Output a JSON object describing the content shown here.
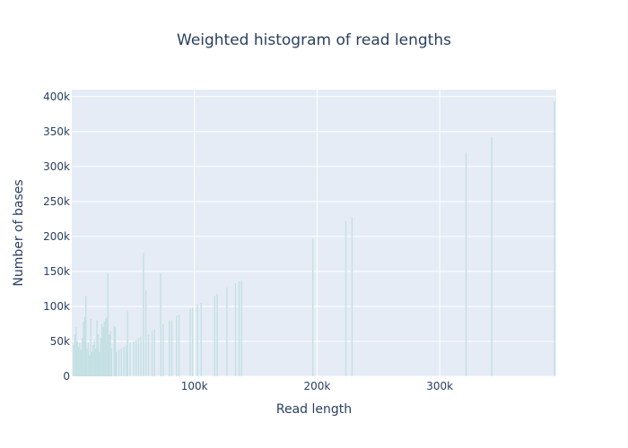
{
  "chart_data": {
    "type": "bar",
    "title": "Weighted histogram of read lengths",
    "xlabel": "Read length",
    "ylabel": "Number of bases",
    "xlim": [
      0,
      395000
    ],
    "ylim": [
      0,
      410000
    ],
    "x_ticks": [
      {
        "value": 100000,
        "label": "100k"
      },
      {
        "value": 200000,
        "label": "200k"
      },
      {
        "value": 300000,
        "label": "300k"
      }
    ],
    "y_ticks": [
      {
        "value": 0,
        "label": "0"
      },
      {
        "value": 50000,
        "label": "50k"
      },
      {
        "value": 100000,
        "label": "100k"
      },
      {
        "value": 150000,
        "label": "150k"
      },
      {
        "value": 200000,
        "label": "200k"
      },
      {
        "value": 250000,
        "label": "250k"
      },
      {
        "value": 300000,
        "label": "300k"
      },
      {
        "value": 350000,
        "label": "350k"
      },
      {
        "value": 400000,
        "label": "400k"
      }
    ],
    "grid": true,
    "background_color": "#e5ecf6",
    "bar_color": "#c4e0e3",
    "bins": [
      {
        "x": 1500,
        "y": 45000
      },
      {
        "x": 2500,
        "y": 60000
      },
      {
        "x": 3500,
        "y": 70000
      },
      {
        "x": 4500,
        "y": 50000
      },
      {
        "x": 5500,
        "y": 42000
      },
      {
        "x": 6500,
        "y": 48000
      },
      {
        "x": 7500,
        "y": 38000
      },
      {
        "x": 8500,
        "y": 55000
      },
      {
        "x": 9500,
        "y": 78000
      },
      {
        "x": 10500,
        "y": 85000
      },
      {
        "x": 11500,
        "y": 115000
      },
      {
        "x": 12500,
        "y": 40000
      },
      {
        "x": 13500,
        "y": 48000
      },
      {
        "x": 14500,
        "y": 30000
      },
      {
        "x": 15500,
        "y": 82000
      },
      {
        "x": 16500,
        "y": 35000
      },
      {
        "x": 17500,
        "y": 45000
      },
      {
        "x": 18500,
        "y": 52000
      },
      {
        "x": 19500,
        "y": 40000
      },
      {
        "x": 20500,
        "y": 80000
      },
      {
        "x": 21500,
        "y": 60000
      },
      {
        "x": 22500,
        "y": 35000
      },
      {
        "x": 23500,
        "y": 55000
      },
      {
        "x": 24500,
        "y": 75000
      },
      {
        "x": 25500,
        "y": 70000
      },
      {
        "x": 26500,
        "y": 78000
      },
      {
        "x": 27500,
        "y": 82000
      },
      {
        "x": 28500,
        "y": 85000
      },
      {
        "x": 29500,
        "y": 147000
      },
      {
        "x": 30500,
        "y": 60000
      },
      {
        "x": 31500,
        "y": 65000
      },
      {
        "x": 32500,
        "y": 40000
      },
      {
        "x": 34500,
        "y": 72000
      },
      {
        "x": 35500,
        "y": 70000
      },
      {
        "x": 36500,
        "y": 35000
      },
      {
        "x": 38500,
        "y": 38000
      },
      {
        "x": 40500,
        "y": 40000
      },
      {
        "x": 42500,
        "y": 42000
      },
      {
        "x": 44500,
        "y": 45000
      },
      {
        "x": 45500,
        "y": 93000
      },
      {
        "x": 47500,
        "y": 48000
      },
      {
        "x": 50500,
        "y": 50000
      },
      {
        "x": 52500,
        "y": 52000
      },
      {
        "x": 54500,
        "y": 55000
      },
      {
        "x": 56500,
        "y": 57000
      },
      {
        "x": 58500,
        "y": 177000
      },
      {
        "x": 60500,
        "y": 123000
      },
      {
        "x": 62500,
        "y": 60000
      },
      {
        "x": 65500,
        "y": 65000
      },
      {
        "x": 67500,
        "y": 67000
      },
      {
        "x": 72500,
        "y": 147000
      },
      {
        "x": 74500,
        "y": 75000
      },
      {
        "x": 79500,
        "y": 80000
      },
      {
        "x": 81500,
        "y": 80000
      },
      {
        "x": 85500,
        "y": 87000
      },
      {
        "x": 87500,
        "y": 88000
      },
      {
        "x": 96500,
        "y": 97000
      },
      {
        "x": 98500,
        "y": 98000
      },
      {
        "x": 102500,
        "y": 103000
      },
      {
        "x": 105500,
        "y": 105000
      },
      {
        "x": 116500,
        "y": 115000
      },
      {
        "x": 118500,
        "y": 118000
      },
      {
        "x": 126500,
        "y": 127000
      },
      {
        "x": 133500,
        "y": 133000
      },
      {
        "x": 136500,
        "y": 136000
      },
      {
        "x": 138500,
        "y": 137000
      },
      {
        "x": 196500,
        "y": 196000
      },
      {
        "x": 223500,
        "y": 222000
      },
      {
        "x": 228500,
        "y": 228000
      },
      {
        "x": 321500,
        "y": 320000
      },
      {
        "x": 342500,
        "y": 342000
      },
      {
        "x": 393500,
        "y": 393000
      }
    ]
  }
}
